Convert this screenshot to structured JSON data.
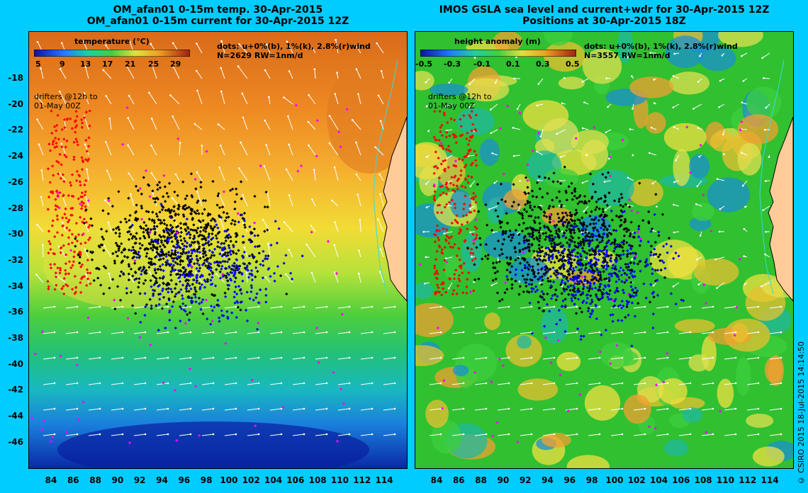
{
  "left_panel": {
    "title_line1": "OM_afan01 0-15m temp. 30-Apr-2015",
    "title_line2": "OM_afan01 0-15m current for 30-Apr-2015 12Z",
    "colorbar_label": "temperature (°C)",
    "colorbar_ticks": [
      "5",
      "9",
      "13",
      "17",
      "21",
      "25",
      "29"
    ],
    "dots_text": "dots: u+0%(b), 1%(k), 2.8%(r)wind",
    "count_text": "N=2629 RW=1nm/d",
    "drifters_line1": "drifters @12h to",
    "drifters_line2": "01-May 00Z"
  },
  "right_panel": {
    "title_line1": "IMOS GSLA sea level and current+wdr for 30-Apr-2015 12Z",
    "title_line2": "Positions at 30-Apr-2015 18Z",
    "colorbar_label": "height anomaly (m)",
    "colorbar_ticks": [
      "-0.5",
      "-0.3",
      "-0.1",
      "0.1",
      "0.3",
      "0.5"
    ],
    "dots_text": "dots: u+0%(b), 1%(k), 2.8%(r)wind",
    "count_text": "N=3557 RW=1nm/d",
    "drifters_line1": "drifters @12h to",
    "drifters_line2": "01-May 00Z"
  },
  "y_axis_ticks": [
    "-18",
    "-20",
    "-22",
    "-24",
    "-26",
    "-28",
    "-30",
    "-32",
    "-34",
    "-36",
    "-38",
    "-40",
    "-42",
    "-44",
    "-46"
  ],
  "x_axis_ticks": [
    "84",
    "86",
    "88",
    "90",
    "92",
    "94",
    "96",
    "98",
    "100",
    "102",
    "104",
    "106",
    "108",
    "110",
    "112",
    "114"
  ],
  "credit": "© CSIRO 2015   18-Jul-2015 14:14:50",
  "colors": {
    "background": "#00ccff",
    "land": "#ffcc99",
    "dot_blue": "#0000ff",
    "dot_black": "#000000",
    "dot_red": "#ff0000",
    "dot_magenta": "#ff00ff"
  }
}
